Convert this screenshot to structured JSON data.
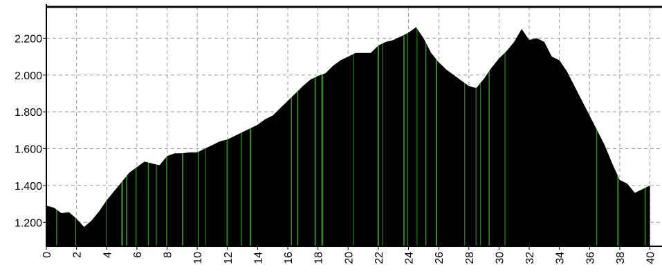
{
  "chart_data": {
    "type": "area",
    "color": "#000000",
    "grid": true,
    "x": [
      0,
      0.5,
      1,
      1.5,
      2,
      2.5,
      3,
      3.5,
      4,
      4.5,
      5,
      5.5,
      6,
      6.5,
      7,
      7.5,
      8,
      8.5,
      9,
      9.5,
      10,
      10.5,
      11,
      11.5,
      12,
      12.5,
      13,
      13.5,
      14,
      14.5,
      15,
      15.5,
      16,
      16.5,
      17,
      17.5,
      18,
      18.5,
      19,
      19.5,
      20,
      20.5,
      21,
      21.5,
      22,
      22.5,
      23,
      23.5,
      24,
      24.5,
      25,
      25.5,
      26,
      26.5,
      27,
      27.5,
      28,
      28.5,
      29,
      29.5,
      30,
      30.5,
      31,
      31.5,
      32,
      32.5,
      33,
      33.5,
      34,
      34.5,
      35,
      35.5,
      36,
      36.5,
      37,
      37.5,
      38,
      38.5,
      39,
      39.5,
      40
    ],
    "values": [
      1290,
      1280,
      1250,
      1255,
      1220,
      1175,
      1210,
      1260,
      1320,
      1370,
      1420,
      1470,
      1500,
      1530,
      1520,
      1510,
      1560,
      1575,
      1575,
      1580,
      1580,
      1600,
      1620,
      1640,
      1650,
      1670,
      1690,
      1710,
      1730,
      1760,
      1780,
      1820,
      1860,
      1900,
      1940,
      1975,
      1995,
      2010,
      2050,
      2080,
      2100,
      2120,
      2120,
      2120,
      2160,
      2180,
      2190,
      2210,
      2230,
      2260,
      2200,
      2120,
      2070,
      2030,
      2000,
      1970,
      1940,
      1930,
      1980,
      2040,
      2090,
      2130,
      2180,
      2250,
      2190,
      2200,
      2180,
      2100,
      2080,
      2020,
      1940,
      1860,
      1780,
      1700,
      1620,
      1520,
      1430,
      1410,
      1360,
      1380,
      1400
    ],
    "xlim": [
      0,
      40.8
    ],
    "ylim": [
      1070,
      2370
    ],
    "xticks": [
      0,
      2,
      4,
      6,
      8,
      10,
      12,
      14,
      16,
      18,
      20,
      22,
      24,
      26,
      28,
      30,
      32,
      34,
      36,
      38,
      40
    ],
    "yticks": [
      {
        "value": 1200,
        "label": "1.200"
      },
      {
        "value": 1400,
        "label": "1.400"
      },
      {
        "value": 1600,
        "label": "1.600"
      },
      {
        "value": 1800,
        "label": "1.800"
      },
      {
        "value": 2000,
        "label": "2.000"
      },
      {
        "value": 2200,
        "label": "2.200"
      }
    ]
  }
}
